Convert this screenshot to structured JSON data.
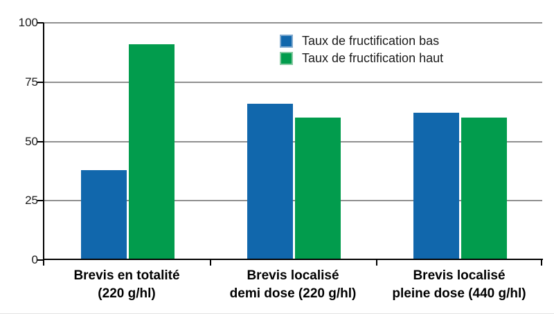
{
  "chart_data": {
    "type": "bar",
    "title": "",
    "xlabel": "",
    "ylabel": "",
    "ylim": [
      0,
      100
    ],
    "yticks": [
      0,
      25,
      50,
      75,
      100
    ],
    "grid": true,
    "legend_position": "top-center",
    "categories": [
      "Brevis en totalité (220 g/hl)",
      "Brevis localisé demi dose (220 g/hl)",
      "Brevis localisé pleine dose (440 g/hl)"
    ],
    "categories_lines": [
      [
        "Brevis en totalité",
        "(220 g/hl)"
      ],
      [
        "Brevis localisé",
        "demi dose (220 g/hl)"
      ],
      [
        "Brevis localisé",
        "pleine dose (440 g/hl)"
      ]
    ],
    "series": [
      {
        "name": "Taux de fructification bas",
        "color": "#1167AC",
        "swatch_border": "#7FA9CF",
        "values": [
          38,
          66,
          62
        ]
      },
      {
        "name": "Taux de fructification haut",
        "color": "#029C4D",
        "swatch_border": "#84C9A0",
        "values": [
          91,
          60,
          60
        ]
      }
    ],
    "colors": {
      "grid": "#8f8f8f",
      "axis": "#000000",
      "tick_text": "#1a1a1a"
    }
  }
}
